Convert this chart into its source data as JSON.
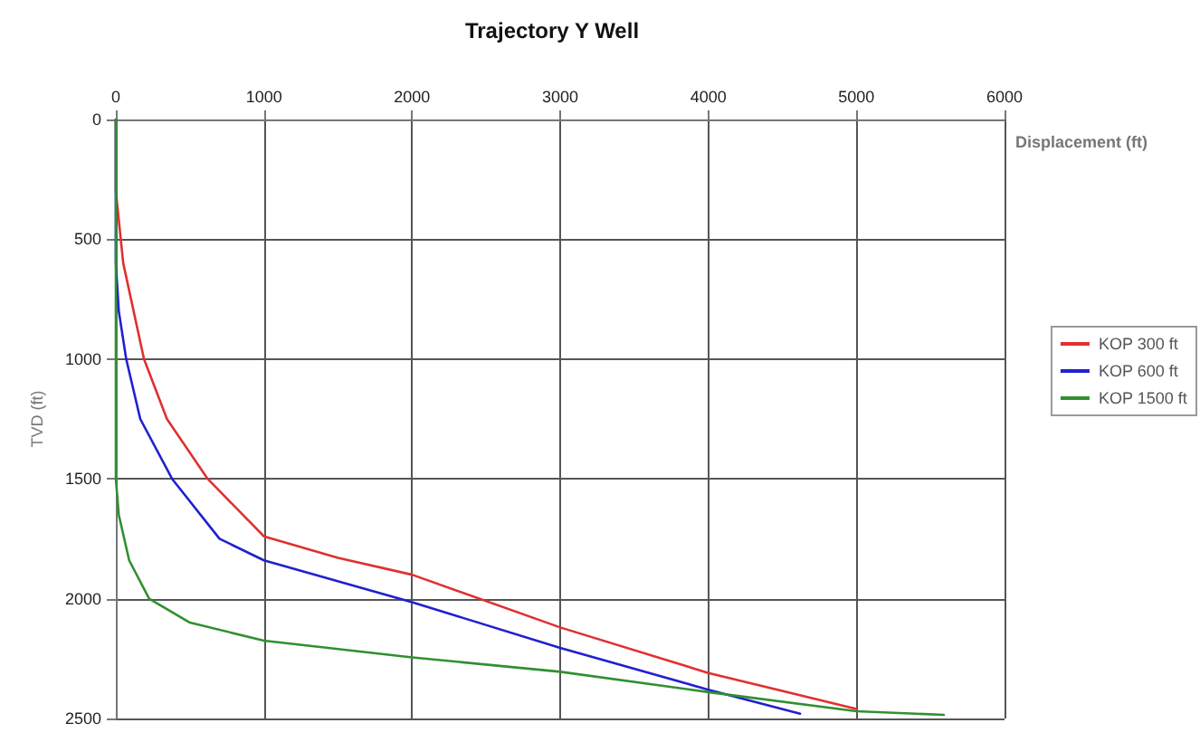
{
  "chart_data": {
    "type": "line",
    "title": "Trajectory Y Well",
    "xlabel": "Displacement (ft)",
    "ylabel": "TVD (ft)",
    "xlim": [
      0,
      6000
    ],
    "xticks": [
      0,
      1000,
      2000,
      3000,
      4000,
      5000,
      6000
    ],
    "ylim": [
      2500,
      0
    ],
    "yticks": [
      0,
      500,
      1000,
      1500,
      2000,
      2500
    ],
    "grid": true,
    "legend": "right",
    "marker": "none",
    "line_style": "solid",
    "series": [
      {
        "name": "KOP 300 ft",
        "color": "#e03030",
        "x": [
          0,
          0,
          50,
          190,
          345,
          620,
          1000,
          1500,
          2000,
          3000,
          4000,
          5000
        ],
        "values": [
          0,
          300,
          600,
          1000,
          1250,
          1500,
          1740,
          1830,
          1900,
          2120,
          2310,
          2460
        ]
      },
      {
        "name": "KOP 600 ft",
        "color": "#2020d0",
        "x": [
          0,
          0,
          20,
          70,
          165,
          380,
          700,
          1000,
          2000,
          3000,
          4000,
          4620
        ],
        "values": [
          0,
          600,
          800,
          1000,
          1250,
          1500,
          1750,
          1840,
          2015,
          2205,
          2380,
          2480
        ]
      },
      {
        "name": "KOP 1500 ft",
        "color": "#309030",
        "x": [
          0,
          0,
          20,
          90,
          225,
          500,
          1000,
          2000,
          3000,
          4000,
          5000,
          5590
        ],
        "values": [
          0,
          1500,
          1650,
          1840,
          2000,
          2100,
          2175,
          2245,
          2305,
          2390,
          2470,
          2485
        ]
      }
    ]
  }
}
